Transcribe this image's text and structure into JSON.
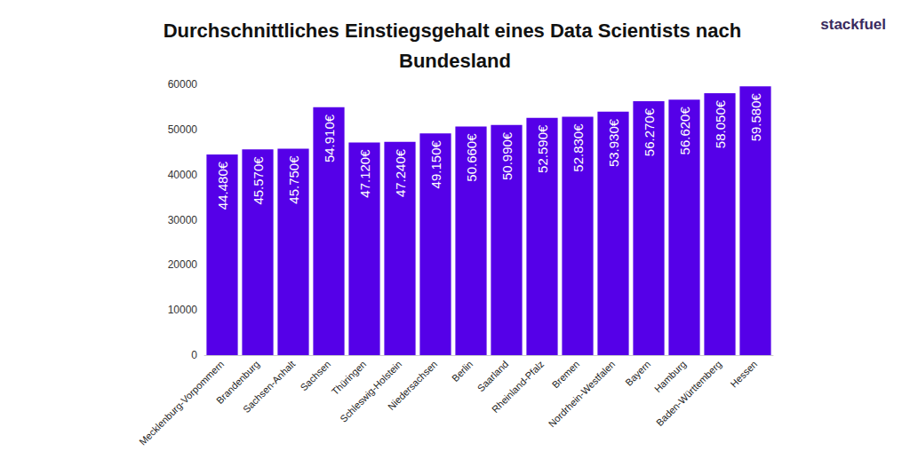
{
  "chart_data": {
    "type": "bar",
    "title": "Durchschnittliches Einstiegsgehalt eines Data Scientists nach Bundesland",
    "logo": "stackfuel",
    "categories": [
      "Mecklenburg-Vorpommern",
      "Brandenburg",
      "Sachsen-Anhalt",
      "Sachsen",
      "Thüringen",
      "Schleswig-Holstein",
      "Niedersachsen",
      "Berlin",
      "Saarland",
      "Rheinland-Pfalz",
      "Bremen",
      "Nordrhein-Westfalen",
      "Bayern",
      "Hamburg",
      "Baden-Württemberg",
      "Hessen"
    ],
    "values": [
      44480,
      45570,
      45750,
      54910,
      47120,
      47240,
      49150,
      50660,
      50990,
      52590,
      52830,
      53930,
      56270,
      56620,
      58050,
      59580
    ],
    "value_labels": [
      "44.480€",
      "45.570€",
      "45.750€",
      "54.910€",
      "47.120€",
      "47.240€",
      "49.150€",
      "50.660€",
      "50.990€",
      "52.590€",
      "52.830€",
      "53.930€",
      "56.270€",
      "56.620€",
      "58.050€",
      "59.580€"
    ],
    "color": "#5500e8",
    "ylim": [
      0,
      60000
    ],
    "yticks": [
      0,
      10000,
      20000,
      30000,
      40000,
      50000,
      60000
    ],
    "grid": false,
    "data_labels": true
  }
}
